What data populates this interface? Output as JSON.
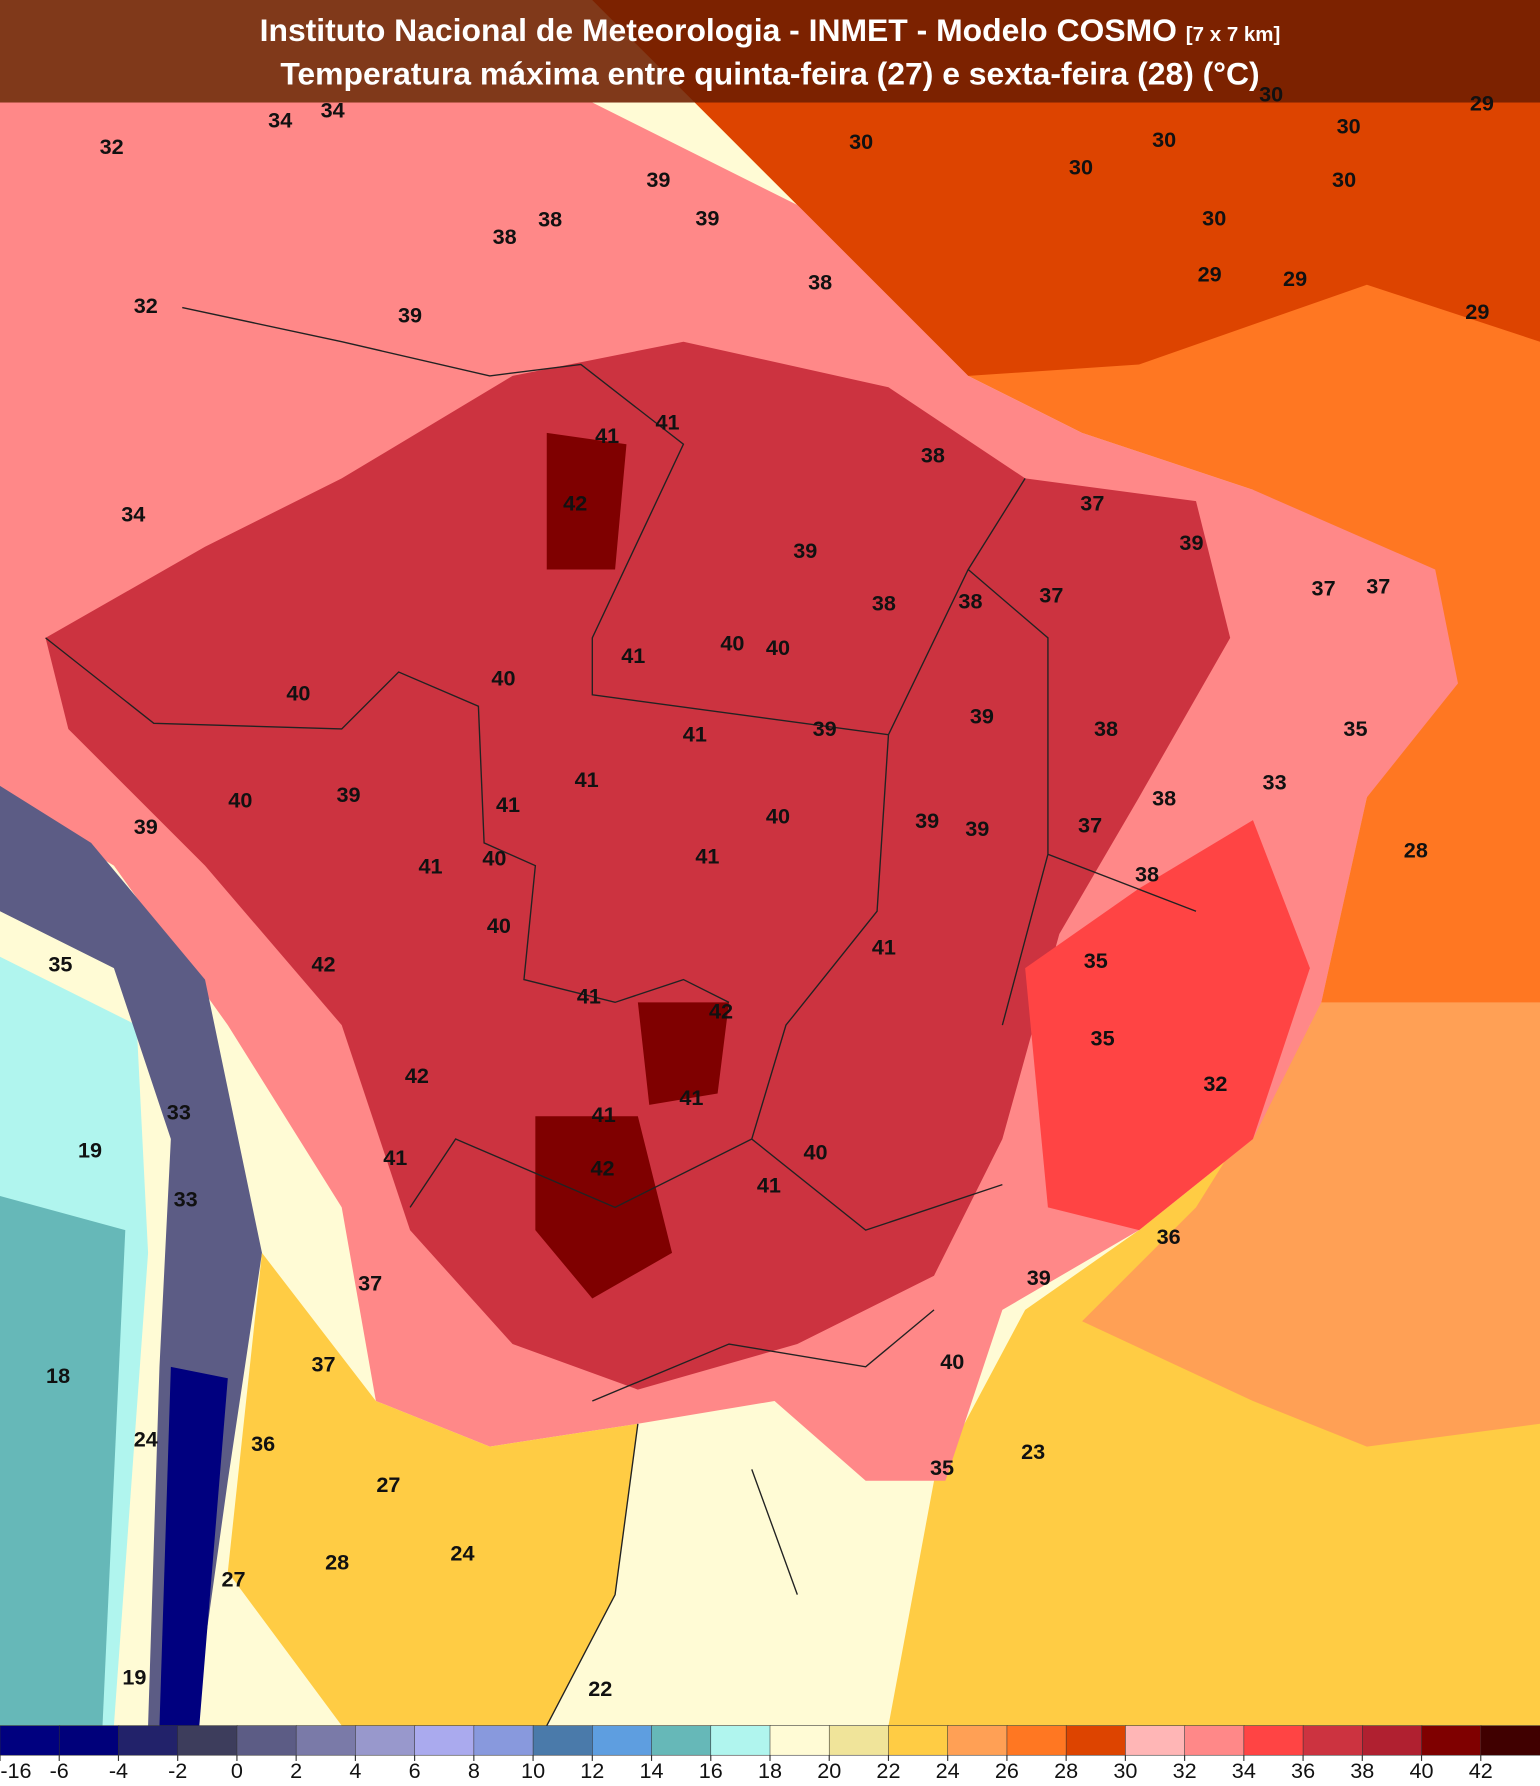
{
  "header": {
    "title": "Instituto Nacional de Meteorologia - INMET - Modelo COSMO",
    "title_note": "[7 x 7 km]",
    "subtitle": "Temperatura máxima entre quinta-feira (27) e sexta-feira (28) (°C)"
  },
  "map": {
    "labels": [
      32,
      34,
      34,
      39,
      39,
      38,
      38,
      30,
      30,
      30,
      30,
      30,
      29,
      30,
      30,
      29,
      29,
      29,
      38,
      32,
      39,
      41,
      41,
      38,
      42,
      34,
      37,
      39,
      39,
      37,
      37,
      38,
      38,
      37,
      40,
      40,
      41,
      40,
      40,
      39,
      41,
      39,
      38,
      35,
      41,
      33,
      40,
      39,
      41,
      40,
      39,
      39,
      37,
      38,
      39,
      28,
      41,
      40,
      41,
      38,
      40,
      41,
      35,
      42,
      35,
      41,
      42,
      35,
      42,
      41,
      33,
      32,
      41,
      19,
      40,
      42,
      41,
      41,
      33,
      36,
      39,
      37,
      40,
      37,
      18,
      24,
      36,
      23,
      35,
      27,
      24,
      28,
      27,
      19,
      22
    ]
  },
  "colorbar": {
    "ticks": [
      -16,
      -6,
      -4,
      -2,
      0,
      2,
      4,
      6,
      8,
      10,
      12,
      14,
      16,
      18,
      20,
      22,
      24,
      26,
      28,
      30,
      32,
      34,
      36,
      38,
      40,
      42
    ],
    "colors": [
      "#00007f",
      "#00007a",
      "#22226a",
      "#3d3d5c",
      "#5c5c85",
      "#7a7aa8",
      "#9898cc",
      "#aaaaee",
      "#8899dd",
      "#4a7aaa",
      "#5e9ee0",
      "#66b8b8",
      "#b0f5ee",
      "#fffbd5",
      "#f0e49a",
      "#ffcc44",
      "#ffa055",
      "#ff7722",
      "#dd4400",
      "#ffb6b6",
      "#ff8888",
      "#ff4444",
      "#cc3340",
      "#b02030",
      "#7f0000",
      "#400000"
    ]
  }
}
